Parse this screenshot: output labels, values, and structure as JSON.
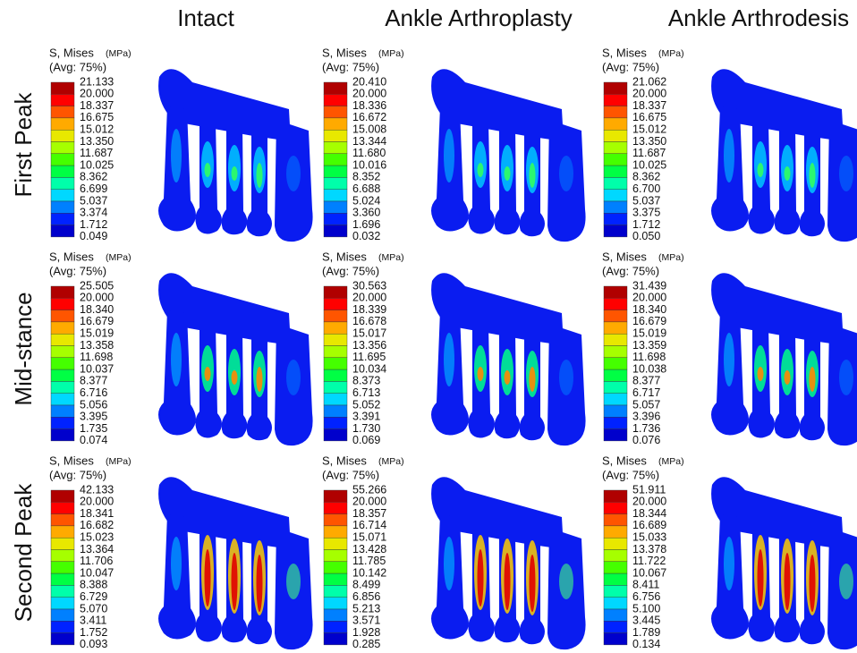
{
  "column_headers": [
    "Intact",
    "Ankle Arthroplasty",
    "Ankle Arthrodesis"
  ],
  "row_labels": [
    "First Peak",
    "Mid-stance",
    "Second Peak"
  ],
  "panels": [
    [
      {
        "legend_title": "S, Mises",
        "unit": "(MPa)",
        "averaging": "(Avg: 75%)",
        "values": [
          "21.133",
          "20.000",
          "18.337",
          "16.675",
          "15.012",
          "13.350",
          "11.687",
          "10.025",
          "8.362",
          "6.699",
          "5.037",
          "3.374",
          "1.712",
          "0.049"
        ]
      },
      {
        "legend_title": "S, Mises",
        "unit": "(MPa)",
        "averaging": "(Avg: 75%)",
        "values": [
          "20.410",
          "20.000",
          "18.336",
          "16.672",
          "15.008",
          "13.344",
          "11.680",
          "10.016",
          "8.352",
          "6.688",
          "5.024",
          "3.360",
          "1.696",
          "0.032"
        ]
      },
      {
        "legend_title": "S, Mises",
        "unit": "(MPa)",
        "averaging": "(Avg: 75%)",
        "values": [
          "21.062",
          "20.000",
          "18.337",
          "16.675",
          "15.012",
          "13.350",
          "11.687",
          "10.025",
          "8.362",
          "6.700",
          "5.037",
          "3.375",
          "1.712",
          "0.050"
        ]
      }
    ],
    [
      {
        "legend_title": "S, Mises",
        "unit": "(MPa)",
        "averaging": "(Avg: 75%)",
        "values": [
          "25.505",
          "20.000",
          "18.340",
          "16.679",
          "15.019",
          "13.358",
          "11.698",
          "10.037",
          "8.377",
          "6.716",
          "5.056",
          "3.395",
          "1.735",
          "0.074"
        ]
      },
      {
        "legend_title": "S, Mises",
        "unit": "(MPa)",
        "averaging": "(Avg: 75%)",
        "values": [
          "30.563",
          "20.000",
          "18.339",
          "16.678",
          "15.017",
          "13.356",
          "11.695",
          "10.034",
          "8.373",
          "6.713",
          "5.052",
          "3.391",
          "1.730",
          "0.069"
        ]
      },
      {
        "legend_title": "S, Mises",
        "unit": "(MPa)",
        "averaging": "(Avg: 75%)",
        "values": [
          "31.439",
          "20.000",
          "18.340",
          "16.679",
          "15.019",
          "13.359",
          "11.698",
          "10.038",
          "8.377",
          "6.717",
          "5.057",
          "3.396",
          "1.736",
          "0.076"
        ]
      }
    ],
    [
      {
        "legend_title": "S, Mises",
        "unit": "(MPa)",
        "averaging": "(Avg: 75%)",
        "values": [
          "42.133",
          "20.000",
          "18.341",
          "16.682",
          "15.023",
          "13.364",
          "11.706",
          "10.047",
          "8.388",
          "6.729",
          "5.070",
          "3.411",
          "1.752",
          "0.093"
        ]
      },
      {
        "legend_title": "S, Mises",
        "unit": "(MPa)",
        "averaging": "(Avg: 75%)",
        "values": [
          "55.266",
          "20.000",
          "18.357",
          "16.714",
          "15.071",
          "13.428",
          "11.785",
          "10.142",
          "8.499",
          "6.856",
          "5.213",
          "3.571",
          "1.928",
          "0.285"
        ]
      },
      {
        "legend_title": "S, Mises",
        "unit": "(MPa)",
        "averaging": "(Avg: 75%)",
        "values": [
          "51.911",
          "20.000",
          "18.344",
          "16.689",
          "15.033",
          "13.378",
          "11.722",
          "10.067",
          "8.411",
          "6.756",
          "5.100",
          "3.445",
          "1.789",
          "0.134"
        ]
      }
    ]
  ]
}
